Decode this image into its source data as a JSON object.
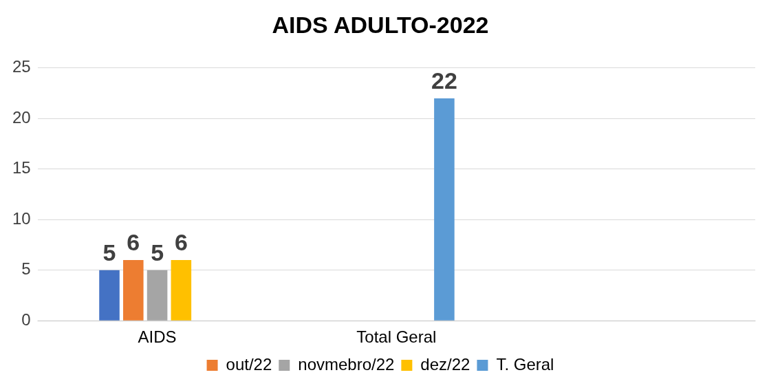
{
  "chart_data": {
    "type": "bar",
    "title": "AIDS ADULTO-2022",
    "categories": [
      "AIDS",
      "Total Geral",
      null
    ],
    "series": [
      {
        "color": "#4472c4",
        "values": [
          5,
          null,
          null
        ]
      },
      {
        "name": "out/22",
        "color": "#ed7d31",
        "values": [
          6,
          null,
          null
        ]
      },
      {
        "name": "novmebro/22",
        "color": "#a5a5a5",
        "values": [
          5,
          null,
          null
        ]
      },
      {
        "name": "dez/22",
        "color": "#ffc000",
        "values": [
          6,
          null,
          null
        ]
      },
      {
        "name": "T. Geral",
        "color": "#5b9bd5",
        "values": [
          null,
          22,
          null
        ]
      }
    ],
    "ylim": [
      0,
      25
    ],
    "yticks": [
      0,
      5,
      10,
      15,
      20,
      25
    ],
    "grid": "y",
    "legend": "bottom",
    "data_labels": true
  }
}
